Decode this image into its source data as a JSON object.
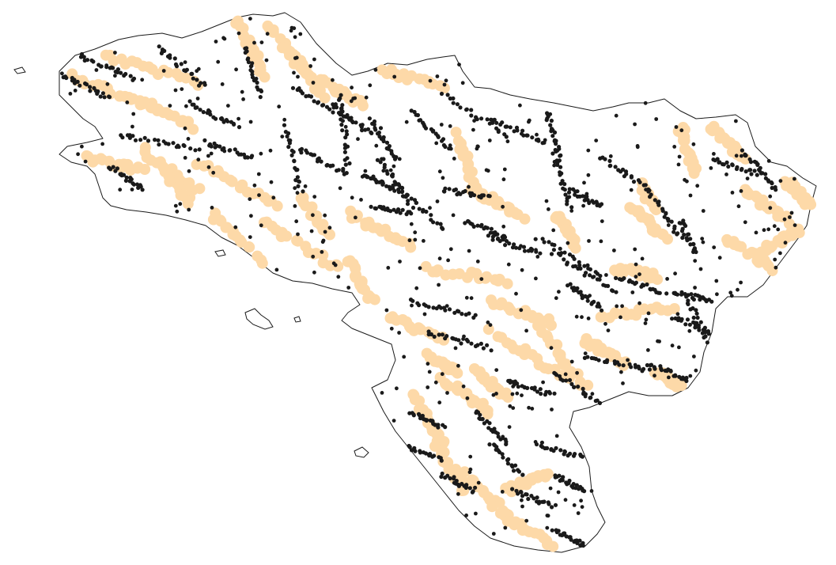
{
  "map": {
    "outline_color": "#1a1a1a",
    "background_color": "#ffffff",
    "series": [
      {
        "key": "dark",
        "color": "#1a1a1a",
        "marker": "small-dot"
      },
      {
        "key": "light",
        "color": "#fdd9a8",
        "marker": "large-dot"
      }
    ],
    "legend": "none",
    "title": ""
  }
}
